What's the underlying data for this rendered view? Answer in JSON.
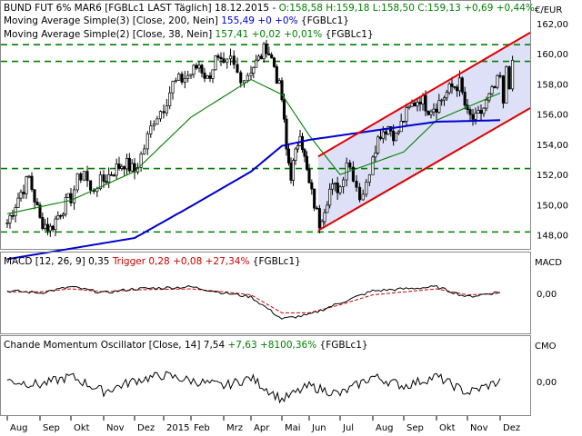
{
  "legend": {
    "main": [
      {
        "text": "BUND FUT 6% MAR6 [FGBLc1 LAST Täglich] 18.12.2015 - ",
        "color": "#000000"
      },
      {
        "text": "O:158,58 H:159,18 L:158,50 C:159,13 +0,69 +0,44%",
        "color": "#008000"
      }
    ],
    "ma200": [
      {
        "text": "Moving Average Simple(3) [Close, 200, Nein] ",
        "color": "#000000"
      },
      {
        "text": "155,49 +0 +0%",
        "color": "#0000cc"
      },
      {
        "text": " {FGBLc1}",
        "color": "#000000"
      }
    ],
    "ma38": [
      {
        "text": "Moving Average Simple(2) [Close, 38, Nein] ",
        "color": "#000000"
      },
      {
        "text": "157,41 +0,02 +0,01%",
        "color": "#008000"
      },
      {
        "text": " {FGBLc1}",
        "color": "#000000"
      }
    ],
    "macd": [
      {
        "text": "MACD [12, 26, 9] 0,35 ",
        "color": "#000000"
      },
      {
        "text": "Trigger 0,28 +0,08 +27,34%",
        "color": "#cc0000"
      },
      {
        "text": " {FGBLc1}",
        "color": "#000000"
      }
    ],
    "cmo": [
      {
        "text": "Chande Momentum Oscillator [Close, 14] 7,54 ",
        "color": "#000000"
      },
      {
        "text": "+7,63 +8100,36%",
        "color": "#008000"
      },
      {
        "text": " {FGBLc1}",
        "color": "#000000"
      }
    ]
  },
  "y_axis": {
    "unit": "€/EUR",
    "ticks": [
      "162,00",
      "160,00",
      "158,00",
      "156,00",
      "154,00",
      "152,00",
      "150,00",
      "148,00"
    ],
    "tick_values": [
      162,
      160,
      158,
      156,
      154,
      152,
      150,
      148
    ],
    "macd_label": "MACD",
    "macd_tick": "0,00",
    "cmo_label": "CMO",
    "cmo_tick": "0,00"
  },
  "x_axis": {
    "labels": [
      "Aug",
      "Sep",
      "Okt",
      "Nov",
      "Dez",
      "2015",
      "Feb",
      "Mrz",
      "Apr",
      "Mai",
      "Jun",
      "Jul",
      "Aug",
      "Sep",
      "Okt",
      "Nov",
      "Dez"
    ]
  },
  "colors": {
    "candle_up": "#ffffff",
    "candle_down": "#000000",
    "candle_wick": "#000000",
    "ma200": "#0000cc",
    "ma38": "#008000",
    "support_lines": "#008000",
    "channel": "#e00000",
    "channel_fill": "#dde0f7",
    "macd": "#000000",
    "trigger": "#cc0000",
    "cmo": "#000000",
    "pane_border": "#8a8a8a"
  },
  "chart_data": {
    "type": "line",
    "title": "BUND FUT 6% MAR6 [FGBLc1 LAST Täglich]",
    "ylim": [
      147.2,
      163.2
    ],
    "grid": false,
    "price_anchors": [
      [
        "Aug",
        148.8
      ],
      [
        "Aug",
        150.5
      ],
      [
        "Aug",
        151.8
      ],
      [
        "Sep",
        149.0
      ],
      [
        "Sep",
        148.4
      ],
      [
        "Sep",
        149.6
      ],
      [
        "Okt",
        150.5
      ],
      [
        "Okt",
        151.6
      ],
      [
        "Okt",
        152.3
      ],
      [
        "Okt",
        150.8
      ],
      [
        "Okt",
        151.4
      ],
      [
        "Nov",
        151.6
      ],
      [
        "Nov",
        152.3
      ],
      [
        "Nov",
        152.8
      ],
      [
        "Dez",
        152.2
      ],
      [
        "Dez",
        153.8
      ],
      [
        "Dez",
        155.7
      ],
      [
        "2015",
        156.5
      ],
      [
        "2015",
        158.0
      ],
      [
        "2015",
        158.3
      ],
      [
        "Feb",
        158.7
      ],
      [
        "Feb",
        159.3
      ],
      [
        "Feb",
        158.3
      ],
      [
        "Feb",
        159.6
      ],
      [
        "Mrz",
        159.0
      ],
      [
        "Mrz",
        159.6
      ],
      [
        "Mrz",
        158.7
      ],
      [
        "Mrz",
        158.4
      ],
      [
        "Apr",
        159.0
      ],
      [
        "Apr",
        159.6
      ],
      [
        "Apr",
        160.5
      ],
      [
        "Apr",
        159.2
      ],
      [
        "Mai",
        157.0
      ],
      [
        "Mai",
        153.6
      ],
      [
        "Mai",
        152.0
      ],
      [
        "Mai",
        153.3
      ],
      [
        "Mai",
        155.0
      ],
      [
        "Mai",
        153.0
      ],
      [
        "Jun",
        151.3
      ],
      [
        "Jun",
        148.8
      ],
      [
        "Jun",
        151.0
      ],
      [
        "Jul",
        151.2
      ],
      [
        "Jul",
        153.0
      ],
      [
        "Jul",
        152.0
      ],
      [
        "Jul",
        150.6
      ],
      [
        "Jul",
        151.2
      ],
      [
        "Aug",
        153.5
      ],
      [
        "Aug",
        154.8
      ],
      [
        "Aug",
        155.2
      ],
      [
        "Aug",
        154.5
      ],
      [
        "Sep",
        155.7
      ],
      [
        "Sep",
        156.6
      ],
      [
        "Sep",
        157.1
      ],
      [
        "Sep",
        156.4
      ],
      [
        "Okt",
        156.6
      ],
      [
        "Okt",
        157.2
      ],
      [
        "Okt",
        157.8
      ],
      [
        "Okt",
        158.0
      ],
      [
        "Nov",
        155.9
      ],
      [
        "Nov",
        155.6
      ],
      [
        "Nov",
        156.4
      ],
      [
        "Nov",
        157.4
      ],
      [
        "Dez",
        158.4
      ],
      [
        "Dez",
        156.4
      ],
      [
        "Dez",
        159.2
      ],
      [
        "Dez",
        158.1
      ],
      [
        "Dez",
        159.1
      ]
    ],
    "ma200_anchors": [
      [
        "Aug",
        146.4
      ],
      [
        "Dez",
        147.8
      ],
      [
        "Feb",
        149.9
      ],
      [
        "Apr",
        152.2
      ],
      [
        "Mai",
        153.9
      ],
      [
        "Jun",
        154.3
      ],
      [
        "Aug",
        154.9
      ],
      [
        "Okt",
        155.5
      ],
      [
        "Dez",
        155.6
      ]
    ],
    "ma38_anchors": [
      [
        "Aug",
        149.4
      ],
      [
        "Okt",
        150.3
      ],
      [
        "Dez",
        152.2
      ],
      [
        "Feb",
        155.8
      ],
      [
        "Apr",
        158.3
      ],
      [
        "Mai",
        157.3
      ],
      [
        "Jun",
        154.6
      ],
      [
        "Jul",
        152.0
      ],
      [
        "Sep",
        153.5
      ],
      [
        "Okt",
        155.6
      ],
      [
        "Dez",
        157.4
      ]
    ],
    "support_levels": [
      160.6,
      159.5,
      152.4,
      148.2
    ],
    "channel_upper": [
      [
        "Jun",
        153.2
      ],
      [
        "Dez",
        161.4
      ]
    ],
    "channel_lower": [
      [
        "Jun",
        148.3
      ],
      [
        "Dez",
        156.4
      ]
    ],
    "macd_ylim": [
      -1.5,
      1.5
    ],
    "macd_anchors": [
      [
        "Aug",
        0.4
      ],
      [
        "Sep",
        0.3
      ],
      [
        "Okt",
        0.6
      ],
      [
        "Nov",
        0.3
      ],
      [
        "Dez",
        0.5
      ],
      [
        "Feb",
        0.6
      ],
      [
        "Mrz",
        0.3
      ],
      [
        "Apr",
        0.1
      ],
      [
        "Mai",
        -1.0
      ],
      [
        "Jun",
        -0.8
      ],
      [
        "Jul",
        -0.2
      ],
      [
        "Aug",
        0.4
      ],
      [
        "Okt",
        0.6
      ],
      [
        "Nov",
        0.1
      ],
      [
        "Dez",
        0.35
      ]
    ],
    "trigger_anchors": [
      [
        "Aug",
        0.35
      ],
      [
        "Sep",
        0.35
      ],
      [
        "Okt",
        0.5
      ],
      [
        "Nov",
        0.35
      ],
      [
        "Dez",
        0.45
      ],
      [
        "Feb",
        0.5
      ],
      [
        "Mrz",
        0.35
      ],
      [
        "Apr",
        0.2
      ],
      [
        "Mai",
        -0.7
      ],
      [
        "Jun",
        -0.7
      ],
      [
        "Jul",
        -0.3
      ],
      [
        "Aug",
        0.2
      ],
      [
        "Okt",
        0.5
      ],
      [
        "Nov",
        0.2
      ],
      [
        "Dez",
        0.28
      ]
    ],
    "cmo_ylim": [
      -100,
      100
    ],
    "cmo_anchors": [
      [
        "Aug",
        10
      ],
      [
        "Sep",
        -5
      ],
      [
        "Okt",
        25
      ],
      [
        "Nov",
        -30
      ],
      [
        "Dez",
        10
      ],
      [
        "2015",
        30
      ],
      [
        "Feb",
        10
      ],
      [
        "Mrz",
        -10
      ],
      [
        "Apr",
        20
      ],
      [
        "Mai",
        -60
      ],
      [
        "Jun",
        -10
      ],
      [
        "Jul",
        -40
      ],
      [
        "Aug",
        25
      ],
      [
        "Sep",
        -10
      ],
      [
        "Okt",
        25
      ],
      [
        "Nov",
        -35
      ],
      [
        "Dez",
        7.54
      ]
    ]
  }
}
